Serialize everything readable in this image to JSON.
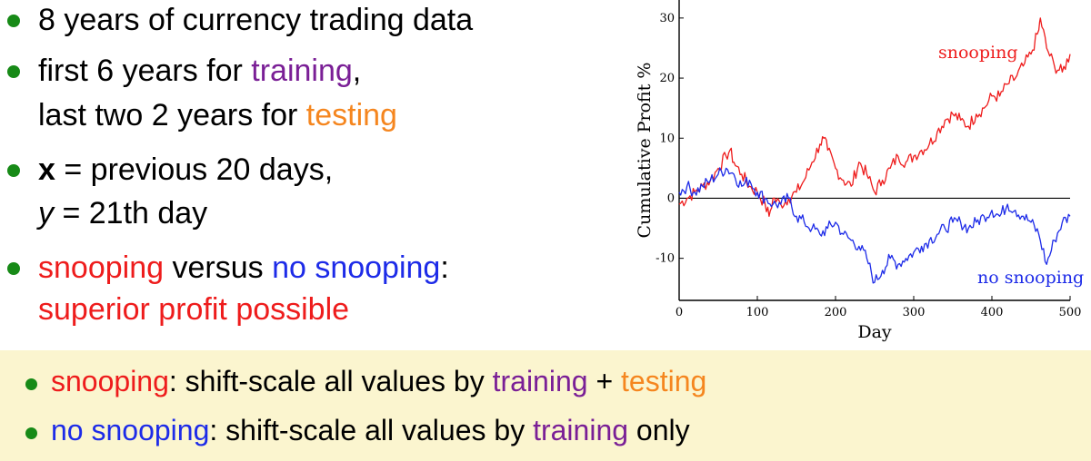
{
  "bullets": {
    "b1": "8 years of currency trading data",
    "b2_pre": "first 6 years for ",
    "b2_training": "training",
    "b2_post": ",",
    "b2_line2_pre": "last two 2 years for ",
    "b2_testing": "testing",
    "b3_x": "x",
    "b3_post": " = previous 20 days,",
    "b3_y": "y",
    "b3_line2": " = 21th day",
    "b4_snooping": "snooping",
    "b4_mid": " versus ",
    "b4_nosnooping": "no snooping",
    "b4_colon": ":",
    "b4_line2": "superior profit possible"
  },
  "bottom": {
    "l1_snooping": "snooping",
    "l1_mid": ": shift-scale all values by ",
    "l1_training": "training",
    "l1_plus": " + ",
    "l1_testing": "testing",
    "l2_nosnooping": "no snooping",
    "l2_mid": ": shift-scale all values by ",
    "l2_training": "training",
    "l2_post": " only"
  },
  "colors": {
    "snooping": "#ee1c1c",
    "no_snooping": "#1d2be8",
    "training": "#7a1f96",
    "testing": "#f5861f",
    "bullet": "#178a17",
    "highlight_box": "#fbf5cf"
  },
  "chart_data": {
    "type": "line",
    "xlabel": "Day",
    "ylabel": "Cumulative Profit %",
    "xlim": [
      0,
      500
    ],
    "ylim": [
      -17,
      33
    ],
    "xticks": [
      0,
      100,
      200,
      300,
      400,
      500
    ],
    "yticks": [
      -10,
      0,
      10,
      20,
      30
    ],
    "grid": false,
    "zero_line": true,
    "series": [
      {
        "name": "snooping",
        "color": "#ee1c1c",
        "x": [
          0,
          10,
          20,
          30,
          40,
          50,
          60,
          65,
          70,
          80,
          90,
          100,
          110,
          115,
          120,
          130,
          140,
          150,
          160,
          170,
          180,
          185,
          190,
          200,
          210,
          220,
          230,
          240,
          250,
          260,
          270,
          280,
          290,
          300,
          310,
          320,
          330,
          340,
          350,
          360,
          370,
          380,
          390,
          400,
          410,
          420,
          430,
          440,
          450,
          460,
          462,
          470,
          480,
          490,
          500
        ],
        "values": [
          -1,
          0,
          1,
          2,
          3,
          5,
          7,
          8,
          6,
          4,
          2,
          1,
          -1,
          -3,
          0,
          -1,
          0,
          1,
          3,
          6,
          9,
          10,
          8,
          5,
          3,
          2,
          6,
          4,
          1,
          3,
          5,
          7,
          6,
          7,
          8,
          9,
          11,
          13,
          14,
          13,
          12,
          14,
          15,
          17,
          17,
          19,
          20,
          22,
          24,
          28,
          30,
          25,
          22,
          21,
          24
        ]
      },
      {
        "name": "no snooping",
        "color": "#1d2be8",
        "x": [
          0,
          10,
          20,
          30,
          40,
          50,
          60,
          70,
          80,
          90,
          100,
          110,
          120,
          130,
          140,
          150,
          160,
          170,
          180,
          190,
          200,
          210,
          220,
          230,
          240,
          250,
          260,
          270,
          280,
          290,
          300,
          310,
          320,
          330,
          340,
          350,
          360,
          370,
          380,
          390,
          400,
          410,
          420,
          430,
          440,
          450,
          460,
          470,
          480,
          490,
          500
        ],
        "values": [
          1,
          2,
          1,
          2,
          3,
          4,
          5,
          4,
          2,
          3,
          1,
          0,
          -1,
          -1,
          0,
          -3,
          -4,
          -5,
          -6,
          -5,
          -4,
          -6,
          -7,
          -8,
          -10,
          -14,
          -12,
          -10,
          -11,
          -10,
          -9,
          -8,
          -7,
          -6,
          -5,
          -4,
          -4,
          -5,
          -4,
          -3,
          -2,
          -3,
          -1,
          -2,
          -3,
          -4,
          -6,
          -11,
          -7,
          -4,
          -3
        ]
      }
    ],
    "annotations": [
      {
        "text": "snooping",
        "series": "snooping"
      },
      {
        "text": "no snooping",
        "series": "no snooping"
      }
    ]
  }
}
